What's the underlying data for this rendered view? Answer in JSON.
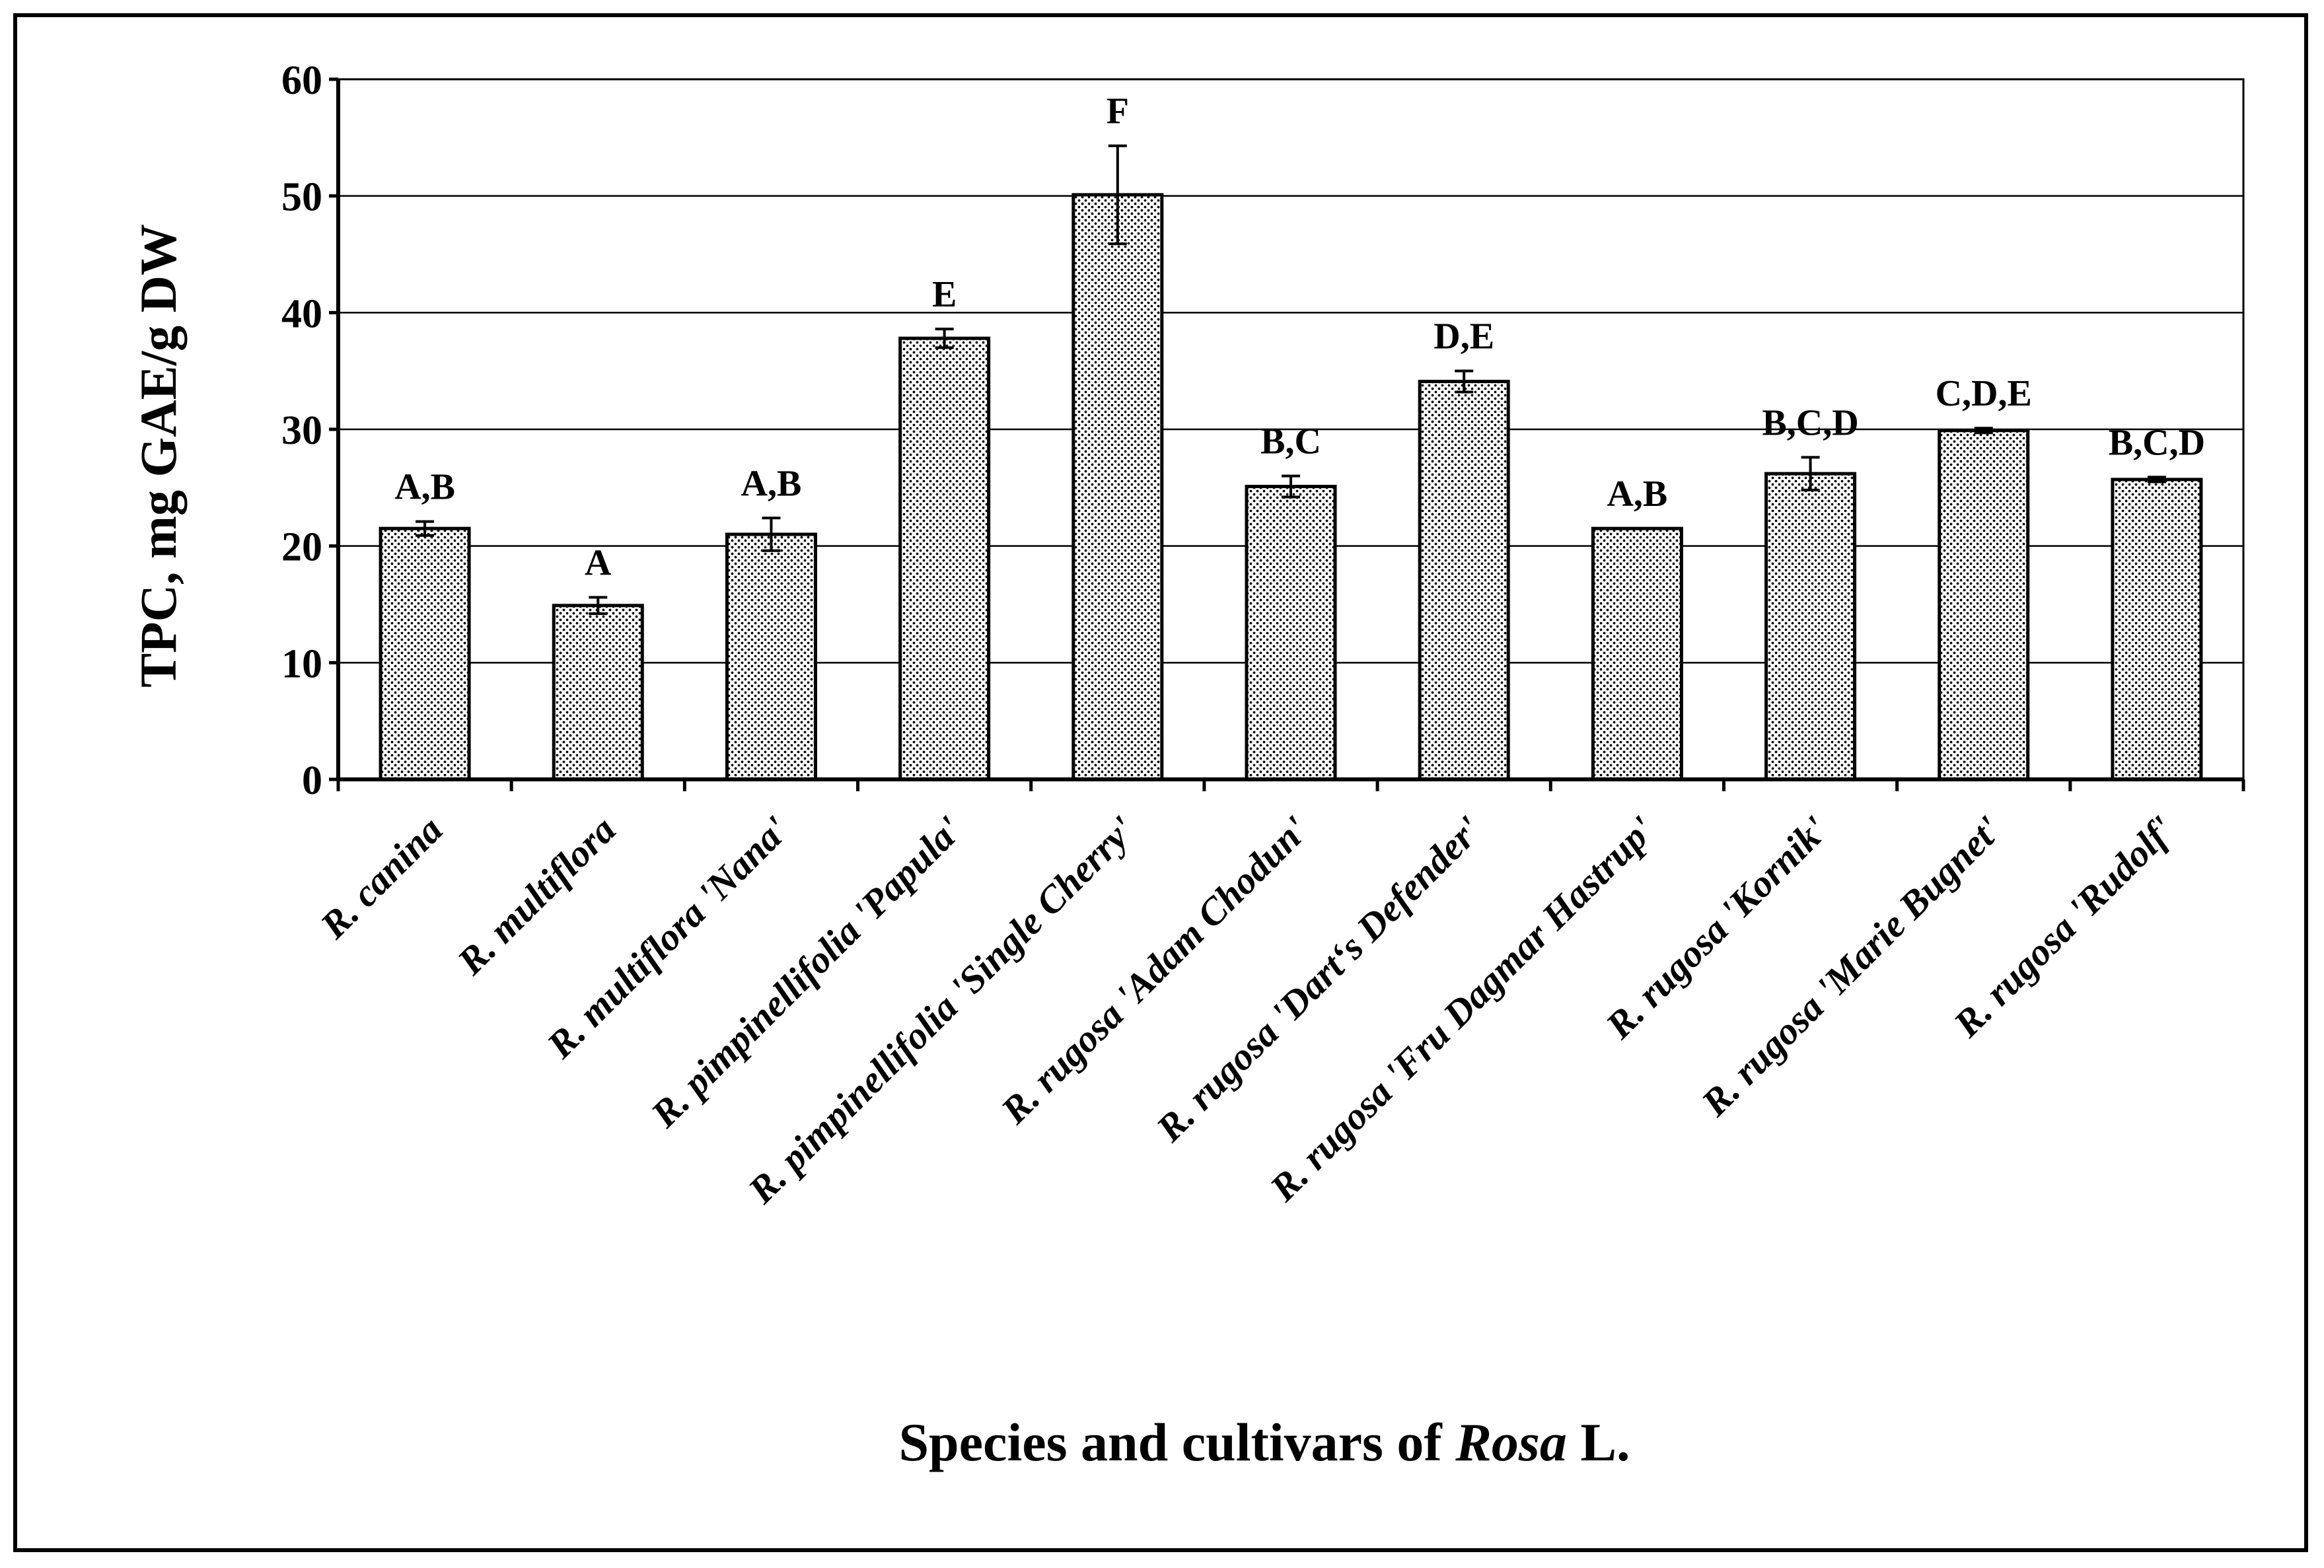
{
  "chart_data": {
    "type": "bar",
    "title": "",
    "xlabel_parts": [
      {
        "text": "Species and cultivars of ",
        "italic": false
      },
      {
        "text": "Rosa",
        "italic": true
      },
      {
        "text": " L.",
        "italic": false
      }
    ],
    "ylabel": "TPC, mg GAE/g DW",
    "ylim": [
      0,
      60
    ],
    "yticks": [
      0,
      10,
      20,
      30,
      40,
      50,
      60
    ],
    "grid": true,
    "colors": {
      "bar_fill": "#ffffff",
      "bar_dots": "#000000",
      "axis": "#000000",
      "grid": "#000000",
      "background": "#ffffff"
    },
    "categories": [
      "R. canina",
      "R. multiflora",
      "R. multiflora 'Nana'",
      "R. pimpinellifolia 'Papula'",
      "R. pimpinellifolia 'Single Cherry'",
      "R. rugosa 'Adam Chodun'",
      "R. rugosa 'Dart‘s Defender'",
      "R. rugosa 'Fru Dagmar Hastrup'",
      "R. rugosa 'Kornik'",
      "R. rugosa 'Marie Bugnet'",
      "R. rugosa 'Rudolf'"
    ],
    "values": [
      21.5,
      14.9,
      21.0,
      37.8,
      50.1,
      25.1,
      34.1,
      21.5,
      26.2,
      29.9,
      25.7
    ],
    "errors": [
      0.6,
      0.7,
      1.4,
      0.8,
      4.2,
      0.9,
      0.9,
      0.0,
      1.4,
      0.2,
      0.2
    ],
    "significance_letters": [
      "A,B",
      "A",
      "A,B",
      "E",
      "F",
      "B,C",
      "D,E",
      "A,B",
      "B,C,D",
      "C,D,E",
      "B,C,D"
    ]
  }
}
